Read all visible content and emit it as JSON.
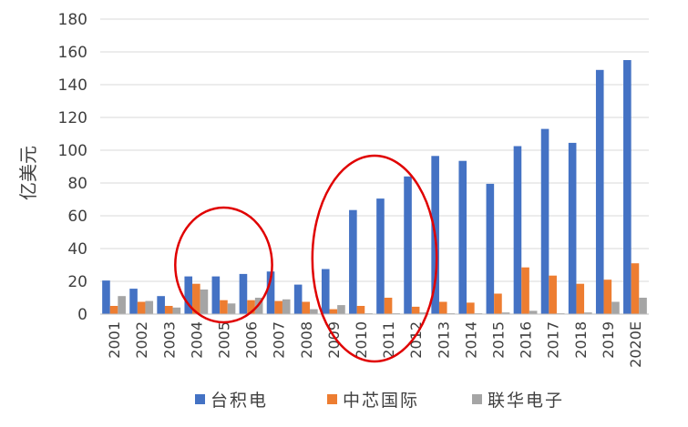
{
  "chart_data": {
    "type": "bar",
    "title": "",
    "xlabel": "",
    "ylabel": "亿美元",
    "ylim": [
      0,
      180
    ],
    "yticks": [
      0,
      20,
      40,
      60,
      80,
      100,
      120,
      140,
      160,
      180
    ],
    "grid": "horizontal",
    "legend_position": "bottom",
    "categories": [
      "2001",
      "2002",
      "2003",
      "2004",
      "2005",
      "2006",
      "2007",
      "2008",
      "2009",
      "2010",
      "2011",
      "2012",
      "2013",
      "2014",
      "2015",
      "2016",
      "2017",
      "2018",
      "2019",
      "2020E"
    ],
    "series": [
      {
        "name": "台积电",
        "color": "#4472c4",
        "values": [
          20.5,
          15.5,
          11,
          23,
          23,
          24.5,
          26,
          18,
          27.5,
          63.5,
          70.5,
          84,
          96.5,
          93.5,
          79.5,
          102.5,
          113,
          104.5,
          149,
          155
        ]
      },
      {
        "name": "中芯国际",
        "color": "#ed7d31",
        "values": [
          5,
          7.5,
          5,
          18.5,
          8.5,
          8.5,
          8,
          7.5,
          3,
          5,
          10,
          4.5,
          7.5,
          7,
          12.5,
          28.5,
          23.5,
          18.5,
          21,
          31
        ]
      },
      {
        "name": "联华电子",
        "color": "#a5a5a5",
        "values": [
          11,
          8,
          4,
          15,
          6.5,
          10,
          9,
          3,
          5.5,
          0.5,
          0.5,
          1,
          0.5,
          0.5,
          1,
          2,
          0.5,
          1,
          7.5,
          10
        ]
      }
    ],
    "annotations": [
      {
        "shape": "ellipse",
        "color": "#e00000",
        "spans": [
          "2004",
          "2006"
        ]
      },
      {
        "shape": "ellipse",
        "color": "#e00000",
        "spans": [
          "2009",
          "2012"
        ]
      }
    ]
  }
}
